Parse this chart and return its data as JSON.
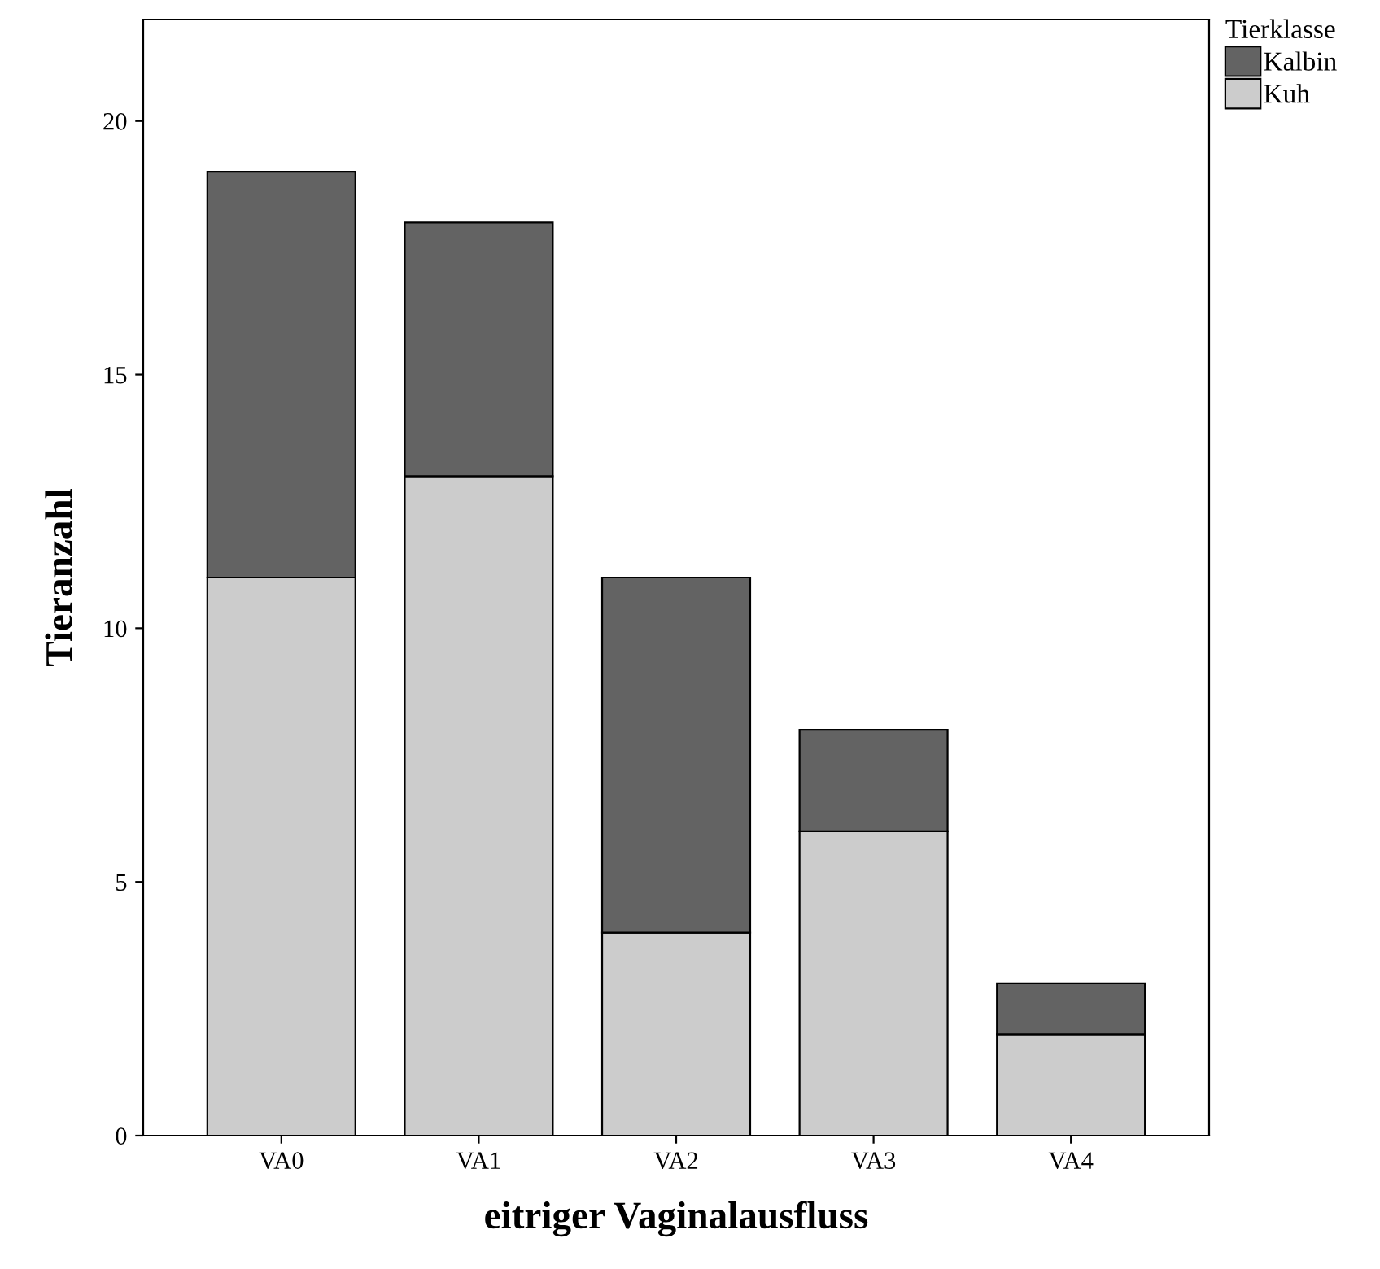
{
  "chart_data": {
    "type": "bar",
    "stacked": true,
    "xlabel": "eitriger Vaginalausfluss",
    "ylabel": "Tieranzahl",
    "legend_title": "Tierklasse",
    "categories": [
      "VA0",
      "VA1",
      "VA2",
      "VA3",
      "VA4"
    ],
    "series": [
      {
        "name": "Kuh",
        "color": "#cccccc",
        "values": [
          11,
          13,
          4,
          6,
          2
        ]
      },
      {
        "name": "Kalbin",
        "color": "#636363",
        "values": [
          8,
          5,
          7,
          2,
          1
        ]
      }
    ],
    "ylim": [
      0,
      22
    ],
    "yticks": [
      0,
      5,
      10,
      15,
      20
    ],
    "grid": false,
    "legend": "right"
  }
}
